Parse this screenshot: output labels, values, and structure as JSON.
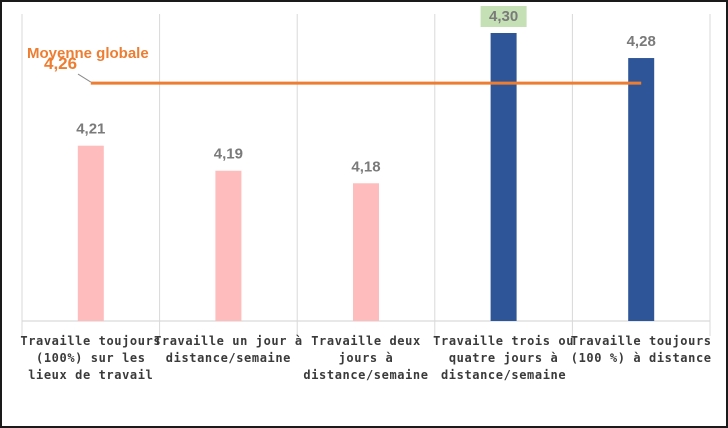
{
  "chart_data": {
    "type": "bar",
    "categories": [
      [
        "Travaille toujours",
        "(100%) sur les",
        "lieux de travail"
      ],
      [
        "Travaille un jour à",
        "distance/semaine"
      ],
      [
        "Travaille deux",
        "jours à",
        "distance/semaine"
      ],
      [
        "Travaille trois ou",
        "quatre jours à",
        "distance/semaine"
      ],
      [
        "Travaille toujours",
        "(100 %) à distance"
      ]
    ],
    "values": [
      4.21,
      4.19,
      4.18,
      4.3,
      4.28
    ],
    "value_labels": [
      "4,21",
      "4,19",
      "4,18",
      "4,30",
      "4,28"
    ],
    "bar_colors": [
      "#ffbcbc",
      "#ffbcbc",
      "#ffbcbc",
      "#2e5597",
      "#2e5597"
    ],
    "highlight_label_index": 3,
    "highlight_color": "#c5e0b4",
    "ylim": [
      4.07,
      4.3
    ],
    "grid": "vertical-separators",
    "reference_line": {
      "name": "Moyenne globale",
      "value": 4.26,
      "value_label": "4,26",
      "color": "#ed7d31"
    },
    "title": "",
    "xlabel": "",
    "ylabel": ""
  }
}
